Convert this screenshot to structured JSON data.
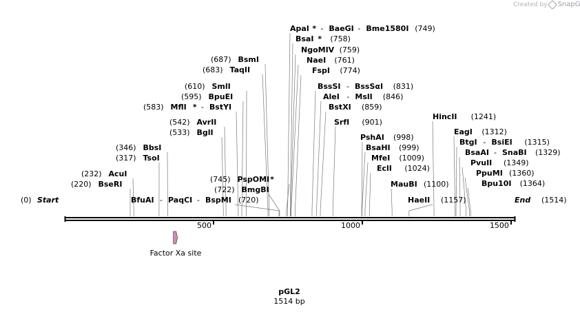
{
  "credit": {
    "text": "Created by",
    "brand": "SnapGene"
  },
  "map": {
    "total_bp": 1514,
    "title": "pGL2",
    "subtitle": "1514 bp",
    "start_label": "Start",
    "start_pos_label": "(0)",
    "end_label": "End",
    "end_pos_label": "(1514)",
    "ticks": [
      500,
      1000,
      1500
    ],
    "feature": {
      "name": "Factor Xa site",
      "start": 365,
      "end": 377,
      "color": "#c78fb2"
    }
  },
  "enzymes": [
    {
      "pos": 232,
      "pos_label": "(232)",
      "names": [
        {
          "n": "AcuI"
        }
      ]
    },
    {
      "pos": 220,
      "pos_label": "(220)",
      "names": [
        {
          "n": "BseRI"
        }
      ]
    },
    {
      "pos": 346,
      "pos_label": "(346)",
      "names": [
        {
          "n": "BbsI"
        }
      ]
    },
    {
      "pos": 317,
      "pos_label": "(317)",
      "names": [
        {
          "n": "TsoI"
        }
      ]
    },
    {
      "pos": 720,
      "pos_label": "(720)",
      "names": [
        {
          "n": "BfuAI"
        },
        {
          "n": "PaqCI"
        },
        {
          "n": "BspMI"
        }
      ]
    },
    {
      "pos": 542,
      "pos_label": "(542)",
      "names": [
        {
          "n": "AvrII"
        }
      ]
    },
    {
      "pos": 533,
      "pos_label": "(533)",
      "names": [
        {
          "n": "BglI"
        }
      ]
    },
    {
      "pos": 610,
      "pos_label": "(610)",
      "names": [
        {
          "n": "SmlI"
        }
      ]
    },
    {
      "pos": 595,
      "pos_label": "(595)",
      "names": [
        {
          "n": "BpuEI"
        }
      ]
    },
    {
      "pos": 583,
      "pos_label": "(583)",
      "names": [
        {
          "n": "MflI",
          "star": "*"
        },
        {
          "n": "BstYI"
        }
      ]
    },
    {
      "pos": 687,
      "pos_label": "(687)",
      "names": [
        {
          "n": "BsmI"
        }
      ]
    },
    {
      "pos": 683,
      "pos_label": "(683)",
      "names": [
        {
          "n": "TaqII"
        }
      ]
    },
    {
      "pos": 745,
      "pos_label": "(745)",
      "names": [
        {
          "n": "PspOMI",
          "star": "*"
        }
      ]
    },
    {
      "pos": 722,
      "pos_label": "(722)",
      "names": [
        {
          "n": "BmgBI"
        }
      ]
    },
    {
      "pos": 749,
      "pos_label": "(749)",
      "names": [
        {
          "n": "ApaI",
          "star": "*"
        },
        {
          "n": "BaeGI"
        },
        {
          "n": "Bme1580I"
        }
      ]
    },
    {
      "pos": 758,
      "pos_label": "(758)",
      "names": [
        {
          "n": "BsaI",
          "star": "*"
        }
      ]
    },
    {
      "pos": 759,
      "pos_label": "(759)",
      "names": [
        {
          "n": "NgoMIV"
        }
      ]
    },
    {
      "pos": 761,
      "pos_label": "(761)",
      "names": [
        {
          "n": "NaeI"
        }
      ]
    },
    {
      "pos": 774,
      "pos_label": "(774)",
      "names": [
        {
          "n": "FspI"
        }
      ]
    },
    {
      "pos": 831,
      "pos_label": "(831)",
      "names": [
        {
          "n": "BssSI"
        },
        {
          "n": "BssSαI"
        }
      ]
    },
    {
      "pos": 846,
      "pos_label": "(846)",
      "names": [
        {
          "n": "AleI"
        },
        {
          "n": "MslI"
        }
      ]
    },
    {
      "pos": 859,
      "pos_label": "(859)",
      "names": [
        {
          "n": "BstXI"
        }
      ]
    },
    {
      "pos": 901,
      "pos_label": "(901)",
      "names": [
        {
          "n": "SrfI"
        }
      ]
    },
    {
      "pos": 998,
      "pos_label": "(998)",
      "names": [
        {
          "n": "PshAI"
        }
      ]
    },
    {
      "pos": 999,
      "pos_label": "(999)",
      "names": [
        {
          "n": "BsaHI"
        }
      ]
    },
    {
      "pos": 1009,
      "pos_label": "(1009)",
      "names": [
        {
          "n": "MfeI"
        }
      ]
    },
    {
      "pos": 1024,
      "pos_label": "(1024)",
      "names": [
        {
          "n": "EclI"
        }
      ]
    },
    {
      "pos": 1100,
      "pos_label": "(1100)",
      "names": [
        {
          "n": "MauBI"
        }
      ]
    },
    {
      "pos": 1241,
      "pos_label": "(1241)",
      "names": [
        {
          "n": "HincII"
        }
      ]
    },
    {
      "pos": 1157,
      "pos_label": "(1157)",
      "names": [
        {
          "n": "HaeII"
        }
      ]
    },
    {
      "pos": 1312,
      "pos_label": "(1312)",
      "names": [
        {
          "n": "EagI"
        }
      ]
    },
    {
      "pos": 1315,
      "pos_label": "(1315)",
      "names": [
        {
          "n": "BtgI"
        },
        {
          "n": "BsiEI"
        }
      ]
    },
    {
      "pos": 1329,
      "pos_label": "(1329)",
      "names": [
        {
          "n": "BsaAI"
        },
        {
          "n": "SnaBI"
        }
      ]
    },
    {
      "pos": 1349,
      "pos_label": "(1349)",
      "names": [
        {
          "n": "PvuII"
        }
      ]
    },
    {
      "pos": 1360,
      "pos_label": "(1360)",
      "names": [
        {
          "n": "PpuMI"
        }
      ]
    },
    {
      "pos": 1364,
      "pos_label": "(1364)",
      "names": [
        {
          "n": "Bpu10I"
        }
      ]
    }
  ]
}
